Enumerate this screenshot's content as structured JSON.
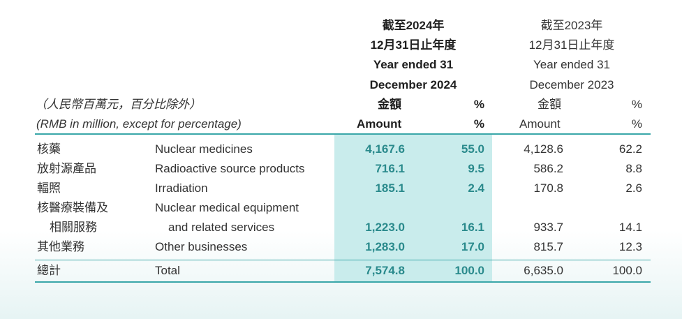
{
  "header": {
    "col2024": [
      "截至2024年",
      "12月31日止年度",
      "Year ended 31",
      "December 2024"
    ],
    "col2023": [
      "截至2023年",
      "12月31日止年度",
      "Year ended 31",
      "December 2023"
    ],
    "unit_note_cn": "（人民幣百萬元，百分比除外）",
    "unit_note_en": "(RMB in million, except for percentage)",
    "amount_cn": "金額",
    "amount_en": "Amount",
    "pct": "%"
  },
  "rows": [
    {
      "cn": "核藥",
      "en": "Nuclear medicines",
      "a2024": "4,167.6",
      "p2024": "55.0",
      "a2023": "4,128.6",
      "p2023": "62.2"
    },
    {
      "cn": "放射源產品",
      "en": "Radioactive source products",
      "a2024": "716.1",
      "p2024": "9.5",
      "a2023": "586.2",
      "p2023": "8.8"
    },
    {
      "cn": "輻照",
      "en": "Irradiation",
      "a2024": "185.1",
      "p2024": "2.4",
      "a2023": "170.8",
      "p2023": "2.6"
    },
    {
      "cn": "核醫療裝備及",
      "cn2": "相關服務",
      "en": "Nuclear medical equipment",
      "en2": "and related services",
      "a2024": "1,223.0",
      "p2024": "16.1",
      "a2023": "933.7",
      "p2023": "14.1"
    },
    {
      "cn": "其他業務",
      "en": "Other businesses",
      "a2024": "1,283.0",
      "p2024": "17.0",
      "a2023": "815.7",
      "p2023": "12.3"
    }
  ],
  "total": {
    "cn": "總計",
    "en": "Total",
    "a2024": "7,574.8",
    "p2024": "100.0",
    "a2023": "6,635.0",
    "p2023": "100.0"
  },
  "colors": {
    "accent": "#3aa7a9",
    "highlight": "#c9ecec",
    "value_text": "#2a8a8c"
  }
}
